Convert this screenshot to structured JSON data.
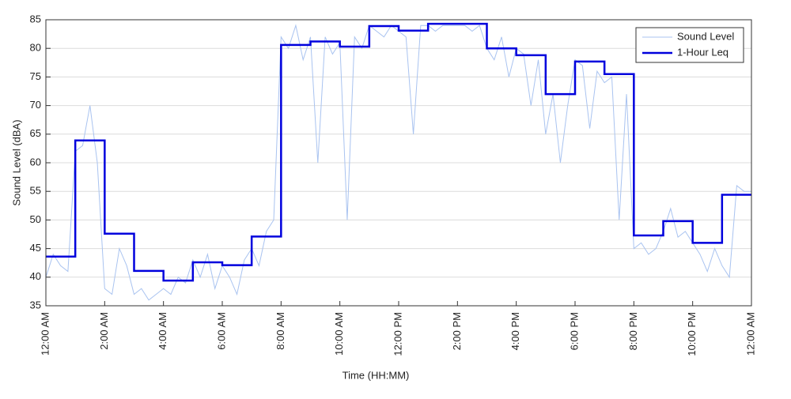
{
  "chart_data": {
    "type": "line",
    "ylabel": "Sound Level (dBA)",
    "xlabel": "Time (HH:MM)",
    "xlim": [
      0,
      24
    ],
    "xticks": [
      {
        "value": 0,
        "label": "12:00 AM"
      },
      {
        "value": 2,
        "label": "2:00 AM"
      },
      {
        "value": 4,
        "label": "4:00 AM"
      },
      {
        "value": 6,
        "label": "6:00 AM"
      },
      {
        "value": 8,
        "label": "8:00 AM"
      },
      {
        "value": 10,
        "label": "10:00 AM"
      },
      {
        "value": 12,
        "label": "12:00 PM"
      },
      {
        "value": 14,
        "label": "2:00 PM"
      },
      {
        "value": 16,
        "label": "4:00 PM"
      },
      {
        "value": 18,
        "label": "6:00 PM"
      },
      {
        "value": 20,
        "label": "8:00 PM"
      },
      {
        "value": 22,
        "label": "10:00 PM"
      },
      {
        "value": 24,
        "label": "12:00 AM"
      }
    ],
    "ylim": [
      35,
      85
    ],
    "yticks": [
      35,
      40,
      45,
      50,
      55,
      60,
      65,
      70,
      75,
      80,
      85
    ],
    "grid": true,
    "legend": "upper right",
    "series": [
      {
        "name": "Sound Level",
        "color": "#a9c3f0",
        "step": false,
        "x": [
          0,
          0.25,
          0.5,
          0.75,
          1,
          1.25,
          1.5,
          1.75,
          2,
          2.25,
          2.5,
          2.75,
          3,
          3.25,
          3.5,
          3.75,
          4,
          4.25,
          4.5,
          4.75,
          5,
          5.25,
          5.5,
          5.75,
          6,
          6.25,
          6.5,
          6.75,
          7,
          7.25,
          7.5,
          7.75,
          8,
          8.25,
          8.5,
          8.75,
          9,
          9.25,
          9.5,
          9.75,
          10,
          10.25,
          10.5,
          10.75,
          11,
          11.25,
          11.5,
          11.75,
          12,
          12.25,
          12.5,
          12.75,
          13,
          13.25,
          13.5,
          13.75,
          14,
          14.25,
          14.5,
          14.75,
          15,
          15.25,
          15.5,
          15.75,
          16,
          16.25,
          16.5,
          16.75,
          17,
          17.25,
          17.5,
          17.75,
          18,
          18.25,
          18.5,
          18.75,
          19,
          19.25,
          19.5,
          19.75,
          20,
          20.25,
          20.5,
          20.75,
          21,
          21.25,
          21.5,
          21.75,
          22,
          22.25,
          22.5,
          22.75,
          23,
          23.25,
          23.5,
          23.75,
          24
        ],
        "values": [
          40,
          44,
          42,
          41,
          62,
          63,
          70,
          60,
          38,
          37,
          45,
          42,
          37,
          38,
          36,
          37,
          38,
          37,
          40,
          39,
          43,
          40,
          44,
          38,
          42,
          40,
          37,
          43,
          45,
          42,
          48,
          50,
          82,
          80,
          84,
          78,
          82,
          60,
          82,
          79,
          81,
          50,
          82,
          80,
          84,
          83,
          82,
          84,
          83,
          82,
          65,
          84,
          84,
          83,
          84,
          84,
          84,
          84,
          83,
          84,
          80,
          78,
          82,
          75,
          80,
          79,
          70,
          78,
          65,
          72,
          60,
          70,
          78,
          77,
          66,
          76,
          74,
          75,
          50,
          72,
          45,
          46,
          44,
          45,
          48,
          52,
          47,
          48,
          46,
          44,
          41,
          45,
          42,
          40,
          56,
          55,
          55
        ]
      },
      {
        "name": "1-Hour Leq",
        "color": "#0000dd",
        "step": true,
        "x": [
          0,
          1,
          2,
          3,
          4,
          5,
          6,
          7,
          8,
          9,
          10,
          11,
          12,
          13,
          14,
          15,
          16,
          17,
          18,
          19,
          20,
          21,
          22,
          23
        ],
        "values": [
          43.6,
          63.9,
          47.6,
          41.1,
          39.4,
          42.6,
          42.1,
          47.1,
          80.6,
          81.2,
          80.3,
          83.9,
          83.1,
          84.3,
          84.3,
          80.0,
          78.8,
          72.0,
          77.7,
          75.5,
          47.3,
          49.8,
          46.0,
          54.4
        ]
      }
    ]
  }
}
